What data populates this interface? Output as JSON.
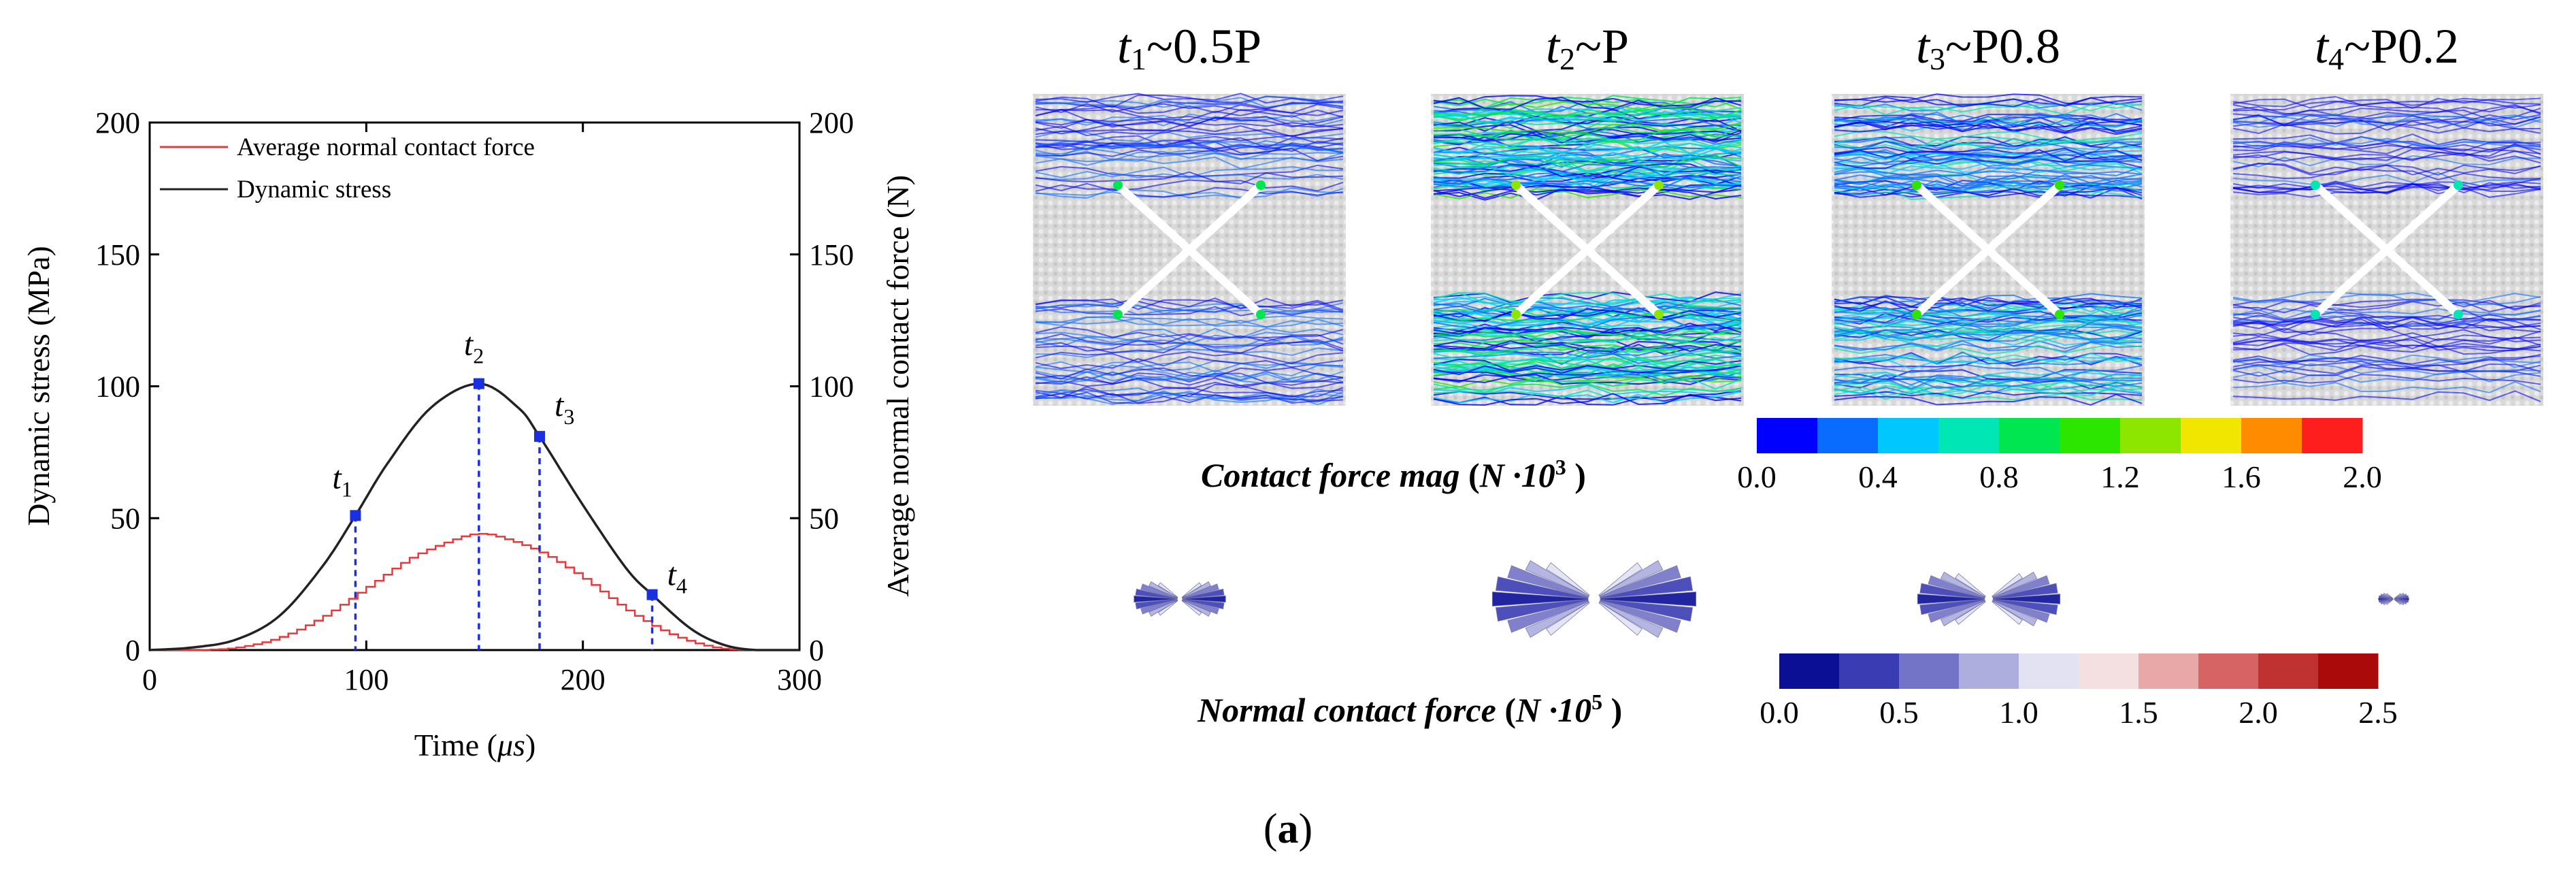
{
  "chart_data": [
    {
      "type": "line",
      "xlabel_prefix": "Time (",
      "xlabel_unit": "μs",
      "xlabel_suffix": ")",
      "ylabel": "Dynamic stress (MPa)",
      "y2label": "Average normal contact force (N)",
      "xlim": [
        0,
        300
      ],
      "ylim": [
        0,
        200
      ],
      "y2lim": [
        0,
        200
      ],
      "xticks": [
        "0",
        "100",
        "200",
        "300"
      ],
      "yticks": [
        "0",
        "50",
        "100",
        "150",
        "200"
      ],
      "legend": "top-left",
      "series": [
        {
          "name": "Average normal contact force",
          "color": "#e8383d",
          "style": "step",
          "x": [
            0,
            20,
            40,
            60,
            80,
            100,
            120,
            140,
            150,
            160,
            180,
            200,
            220,
            240,
            260,
            280,
            300
          ],
          "y": [
            0,
            0,
            1,
            5,
            13,
            24,
            35,
            42,
            44,
            43,
            37,
            27,
            15,
            6,
            1,
            0,
            0
          ]
        },
        {
          "name": "Dynamic stress",
          "color": "#222222",
          "style": "line",
          "x": [
            0,
            20,
            40,
            60,
            80,
            95,
            110,
            130,
            152,
            170,
            180,
            200,
            220,
            232,
            250,
            265,
            280,
            300
          ],
          "y": [
            0,
            1,
            4,
            13,
            32,
            51,
            71,
            92,
            101,
            92,
            81,
            55,
            31,
            21,
            8,
            2,
            0,
            0
          ]
        }
      ],
      "markers": [
        {
          "sym": "t",
          "sub": "1",
          "x": 95,
          "y": 51
        },
        {
          "sym": "t",
          "sub": "2",
          "x": 152,
          "y": 101
        },
        {
          "sym": "t",
          "sub": "3",
          "x": 180,
          "y": 81
        },
        {
          "sym": "t",
          "sub": "4",
          "x": 232,
          "y": 21
        }
      ],
      "marker_color": "#1a2fe0"
    },
    {
      "type": "heatmap",
      "panels": [
        {
          "sym": "t",
          "sub": "1",
          "rest": "~0.5P",
          "intensity": 0.15
        },
        {
          "sym": "t",
          "sub": "2",
          "rest": "~P",
          "intensity": 0.85
        },
        {
          "sym": "t",
          "sub": "3",
          "rest": "~P0.8",
          "intensity": 0.55
        },
        {
          "sym": "t",
          "sub": "4",
          "rest": "~P0.2",
          "intensity": 0.1
        }
      ],
      "colorbar_mag": {
        "label": "Contact force mag",
        "unit_base": "N ·10",
        "unit_exp": "3",
        "colors": [
          "#0000ff",
          "#0a6cff",
          "#00c8ff",
          "#00e6b4",
          "#00e650",
          "#2ce600",
          "#8ce600",
          "#f0e600",
          "#ff8c00",
          "#ff1e1e"
        ],
        "ticks": [
          "0.0",
          "0.4",
          "0.8",
          "1.2",
          "1.6",
          "2.0"
        ]
      },
      "rose_sizes": [
        0.45,
        1.0,
        0.7,
        0.15
      ],
      "colorbar_normal": {
        "label": "Normal contact force",
        "unit_base": "N ·10",
        "unit_exp": "5",
        "colors": [
          "#0a0f96",
          "#3a3cb4",
          "#7373c8",
          "#aeaede",
          "#e2e2f2",
          "#f4e0e0",
          "#e8a8a8",
          "#d66464",
          "#c03232",
          "#aa0a0a"
        ],
        "ticks": [
          "0.0",
          "0.5",
          "1.0",
          "1.5",
          "2.0",
          "2.5"
        ]
      }
    }
  ],
  "caption": {
    "open": "(",
    "letter": "a",
    "close": ")"
  }
}
